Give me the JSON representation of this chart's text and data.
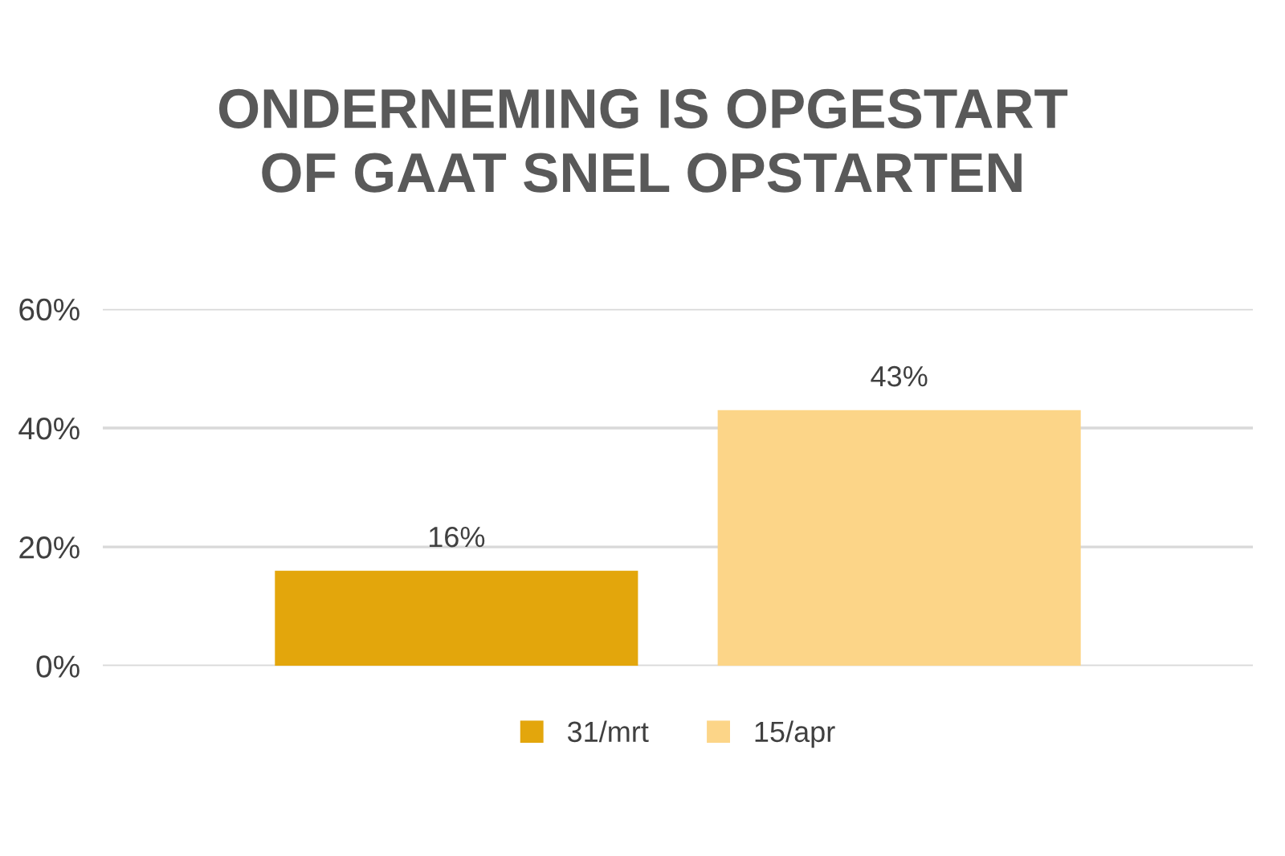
{
  "chart_data": {
    "type": "bar",
    "title": "ONDERNEMING IS OPGESTART\nOF GAAT SNEL OPSTARTEN",
    "categories": [
      null
    ],
    "series": [
      {
        "name": "31/mrt",
        "color": "#e3a60c",
        "values": [
          16
        ],
        "value_labels": [
          "16%"
        ]
      },
      {
        "name": "15/apr",
        "color": "#fcd588",
        "values": [
          43
        ],
        "value_labels": [
          "43%"
        ]
      }
    ],
    "ylim": [
      0,
      60
    ],
    "yticks": [
      {
        "value": 0,
        "label": "0%"
      },
      {
        "value": 20,
        "label": "20%"
      },
      {
        "value": 40,
        "label": "40%"
      },
      {
        "value": 60,
        "label": "60%"
      }
    ],
    "grid": "y",
    "legend": "bottom"
  }
}
